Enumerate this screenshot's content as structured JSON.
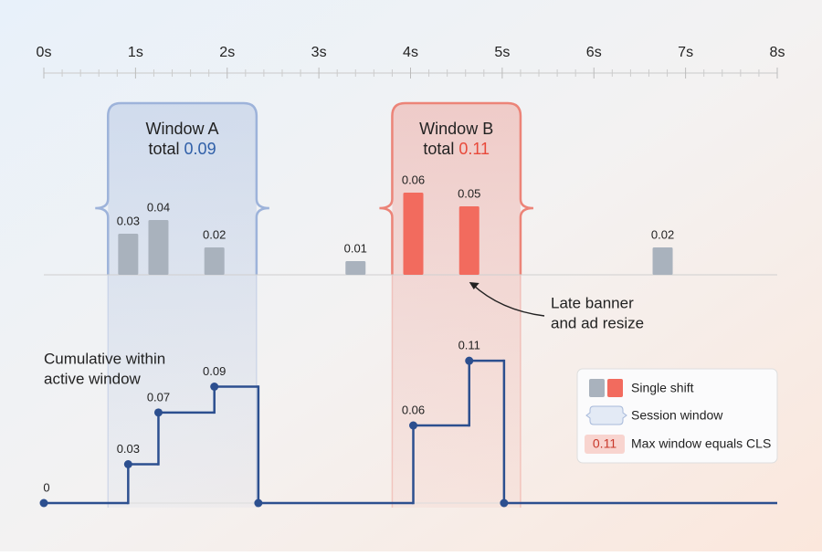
{
  "chart_data": {
    "type": "cls",
    "xlim": [
      0,
      8
    ],
    "xticks": [
      {
        "value": 0,
        "label": "0s"
      },
      {
        "value": 1,
        "label": "1s"
      },
      {
        "value": 2,
        "label": "2s"
      },
      {
        "value": 3,
        "label": "3s"
      },
      {
        "value": 4,
        "label": "4s"
      },
      {
        "value": 5,
        "label": "5s"
      },
      {
        "value": 6,
        "label": "6s"
      },
      {
        "value": 7,
        "label": "7s"
      },
      {
        "value": 8,
        "label": "8s"
      }
    ],
    "windows": [
      {
        "name": "Window A",
        "total_label": "total",
        "total": 0.09,
        "start": 0.7,
        "end": 2.32,
        "color": "#9db3da",
        "text_color": "#2f5fa8"
      },
      {
        "name": "Window B",
        "total_label": "total",
        "total": 0.11,
        "start": 3.8,
        "end": 5.2,
        "color": "#ec8478",
        "text_color": "#e8493a"
      }
    ],
    "shifts": {
      "x": [
        0.92,
        1.25,
        1.86,
        3.4,
        4.03,
        4.64,
        6.75
      ],
      "values": [
        0.03,
        0.04,
        0.02,
        0.01,
        0.06,
        0.05,
        0.02
      ],
      "colors": [
        "#a9b2bd",
        "#a9b2bd",
        "#a9b2bd",
        "#a9b2bd",
        "#f26b5e",
        "#f26b5e",
        "#a9b2bd"
      ],
      "ylim": [
        0,
        0.1
      ]
    },
    "cumulative": {
      "label": [
        "Cumulative within",
        "active window"
      ],
      "color": "#2c4f8f",
      "x": [
        0,
        0.92,
        1.25,
        1.86,
        2.34,
        4.03,
        4.64,
        5.02
      ],
      "values": [
        0,
        0.03,
        0.07,
        0.09,
        0,
        0.06,
        0.11,
        0
      ],
      "labeled": [
        true,
        true,
        true,
        true,
        false,
        true,
        true,
        false
      ],
      "ylim": [
        0,
        0.12
      ]
    },
    "annotation": {
      "lines": [
        "Late banner",
        "and ad resize"
      ],
      "target": 5
    },
    "legend": {
      "single_shift": "Single shift",
      "session_window": "Session window",
      "max_window": "Max window equals CLS"
    }
  }
}
